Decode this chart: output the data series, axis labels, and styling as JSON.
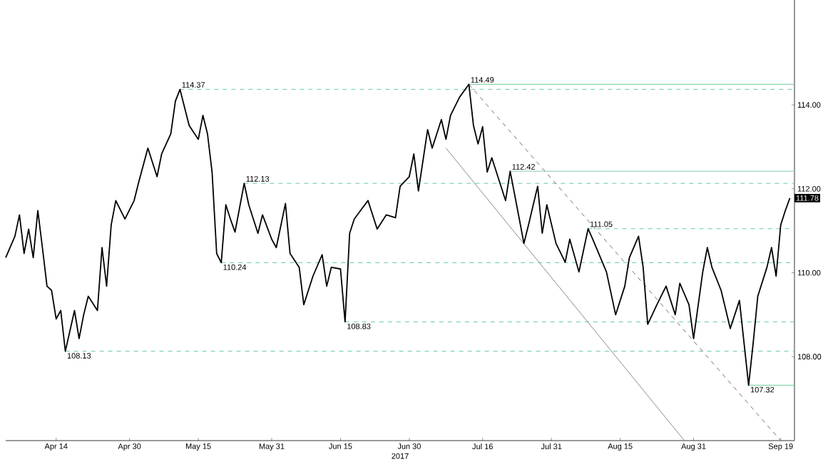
{
  "chart_data": {
    "type": "line",
    "xlabel": "2017",
    "series": [
      {
        "color": "#000000",
        "line_style": "solid",
        "x": [
          "2017-04-03",
          "2017-04-05",
          "2017-04-06",
          "2017-04-07",
          "2017-04-08",
          "2017-04-09",
          "2017-04-10",
          "2017-04-11",
          "2017-04-12",
          "2017-04-13",
          "2017-04-14",
          "2017-04-15",
          "2017-04-16",
          "2017-04-18",
          "2017-04-19",
          "2017-04-20",
          "2017-04-21",
          "2017-04-23",
          "2017-04-24",
          "2017-04-25",
          "2017-04-26",
          "2017-04-27",
          "2017-04-29",
          "2017-05-01",
          "2017-05-02",
          "2017-05-04",
          "2017-05-06",
          "2017-05-07",
          "2017-05-09",
          "2017-05-10",
          "2017-05-11",
          "2017-05-13",
          "2017-05-15",
          "2017-05-16",
          "2017-05-17",
          "2017-05-18",
          "2017-05-19",
          "2017-05-20",
          "2017-05-21",
          "2017-05-22",
          "2017-05-23",
          "2017-05-25",
          "2017-05-26",
          "2017-05-28",
          "2017-05-29",
          "2017-05-31",
          "2017-06-01",
          "2017-06-03",
          "2017-06-04",
          "2017-06-06",
          "2017-06-07",
          "2017-06-09",
          "2017-06-11",
          "2017-06-12",
          "2017-06-13",
          "2017-06-15",
          "2017-06-16",
          "2017-06-17",
          "2017-06-18",
          "2017-06-21",
          "2017-06-23",
          "2017-06-25",
          "2017-06-27",
          "2017-06-28",
          "2017-06-30",
          "2017-07-01",
          "2017-07-02",
          "2017-07-04",
          "2017-07-05",
          "2017-07-07",
          "2017-07-08",
          "2017-07-09",
          "2017-07-11",
          "2017-07-13",
          "2017-07-14",
          "2017-07-15",
          "2017-07-16",
          "2017-07-17",
          "2017-07-18",
          "2017-07-20",
          "2017-07-21",
          "2017-07-22",
          "2017-07-24",
          "2017-07-25",
          "2017-07-26",
          "2017-07-28",
          "2017-07-29",
          "2017-07-30",
          "2017-08-01",
          "2017-08-03",
          "2017-08-04",
          "2017-08-06",
          "2017-08-08",
          "2017-08-09",
          "2017-08-12",
          "2017-08-14",
          "2017-08-16",
          "2017-08-17",
          "2017-08-19",
          "2017-08-20",
          "2017-08-21",
          "2017-08-23",
          "2017-08-25",
          "2017-08-27",
          "2017-08-28",
          "2017-08-30",
          "2017-08-31",
          "2017-09-02",
          "2017-09-03",
          "2017-09-04",
          "2017-09-06",
          "2017-09-08",
          "2017-09-10",
          "2017-09-12",
          "2017-09-13",
          "2017-09-14",
          "2017-09-16",
          "2017-09-17",
          "2017-09-18",
          "2017-09-19",
          "2017-09-20",
          "2017-09-21"
        ],
        "values": [
          110.36,
          110.87,
          111.38,
          110.46,
          111.04,
          110.36,
          111.48,
          110.6,
          109.68,
          109.58,
          108.9,
          109.1,
          108.13,
          109.1,
          108.43,
          109.0,
          109.44,
          109.1,
          110.6,
          109.68,
          111.14,
          111.72,
          111.28,
          111.72,
          112.16,
          112.97,
          112.29,
          112.83,
          113.31,
          114.09,
          114.37,
          113.51,
          113.18,
          113.75,
          113.31,
          112.4,
          110.46,
          110.24,
          111.62,
          111.28,
          110.97,
          112.13,
          111.62,
          110.94,
          111.38,
          110.8,
          110.6,
          111.65,
          110.46,
          110.13,
          109.24,
          109.92,
          110.43,
          109.68,
          110.13,
          110.09,
          108.83,
          110.94,
          111.28,
          111.72,
          111.04,
          111.38,
          111.31,
          112.06,
          112.29,
          112.83,
          111.95,
          113.41,
          112.97,
          113.65,
          113.18,
          113.75,
          114.19,
          114.49,
          113.51,
          113.07,
          113.48,
          112.4,
          112.74,
          112.06,
          111.72,
          112.42,
          111.28,
          110.7,
          111.14,
          112.06,
          110.94,
          111.62,
          110.7,
          110.25,
          110.8,
          110.02,
          111.05,
          110.8,
          110.02,
          109.0,
          109.68,
          110.36,
          110.87,
          110.13,
          108.77,
          109.24,
          109.68,
          109.0,
          109.75,
          109.24,
          108.43,
          110.02,
          110.6,
          110.13,
          109.58,
          108.67,
          109.34,
          107.32,
          108.33,
          109.44,
          110.13,
          110.6,
          109.92,
          111.14,
          111.48,
          111.78
        ]
      },
      {
        "color": "#8c8c8c",
        "line_style": "solid",
        "x": [
          "2017-07-08",
          "2017-08-29"
        ],
        "values": [
          112.97,
          106.0
        ]
      },
      {
        "color": "#707070",
        "line_style": "dashed",
        "x": [
          "2017-07-13",
          "2017-09-19"
        ],
        "values": [
          114.49,
          106.0
        ]
      }
    ],
    "xlim": [
      "2017-04-03",
      "2017-09-22"
    ],
    "xticks": [
      {
        "value": "2017-04-14",
        "label": "Apr 14"
      },
      {
        "value": "2017-04-30",
        "label": "Apr 30"
      },
      {
        "value": "2017-05-15",
        "label": "May 15"
      },
      {
        "value": "2017-05-31",
        "label": "May 31"
      },
      {
        "value": "2017-06-15",
        "label": "Jun 15"
      },
      {
        "value": "2017-06-30",
        "label": "Jun 30"
      },
      {
        "value": "2017-07-16",
        "label": "Jul 16"
      },
      {
        "value": "2017-07-31",
        "label": "Jul 31"
      },
      {
        "value": "2017-08-15",
        "label": "Aug 15"
      },
      {
        "value": "2017-08-31",
        "label": "Aug 31"
      },
      {
        "value": "2017-09-19",
        "label": "Sep 19"
      }
    ],
    "ylim": [
      106,
      116.5
    ],
    "yticks": [
      {
        "value": 108,
        "label": "108.00"
      },
      {
        "value": 110,
        "label": "110.00"
      },
      {
        "value": 112,
        "label": "112.00"
      },
      {
        "value": 114,
        "label": "114.00"
      }
    ],
    "ref_lines": [
      {
        "axis": "y",
        "value": 114.49,
        "label": "114.49",
        "color": "#66cc99",
        "line_style": "solid"
      },
      {
        "axis": "y",
        "value": 114.37,
        "label": "114.37",
        "color": "#66cc99",
        "line_style": "dashed"
      },
      {
        "axis": "y",
        "value": 112.42,
        "label": "112.42",
        "color": "#88c8b0",
        "line_style": "solid"
      },
      {
        "axis": "y",
        "value": 112.13,
        "label": "112.13",
        "color": "#66cc99",
        "line_style": "dashed"
      },
      {
        "axis": "y",
        "value": 111.05,
        "label": "111.05",
        "color": "#66cc99",
        "line_style": "dashed"
      },
      {
        "axis": "y",
        "value": 110.24,
        "label": "110.24",
        "color": "#66cc99",
        "line_style": "dashed"
      },
      {
        "axis": "y",
        "value": 108.83,
        "label": "108.83",
        "color": "#66cc99",
        "line_style": "dashed"
      },
      {
        "axis": "y",
        "value": 108.13,
        "label": "108.13",
        "color": "#66cc99",
        "line_style": "dashed"
      },
      {
        "axis": "y",
        "value": 107.32,
        "label": "107.32",
        "color": "#66cc99",
        "line_style": "solid"
      }
    ],
    "annotations": [
      {
        "text": "111.78",
        "x": "2017-09-21",
        "y": 111.78
      }
    ],
    "grid": false
  }
}
